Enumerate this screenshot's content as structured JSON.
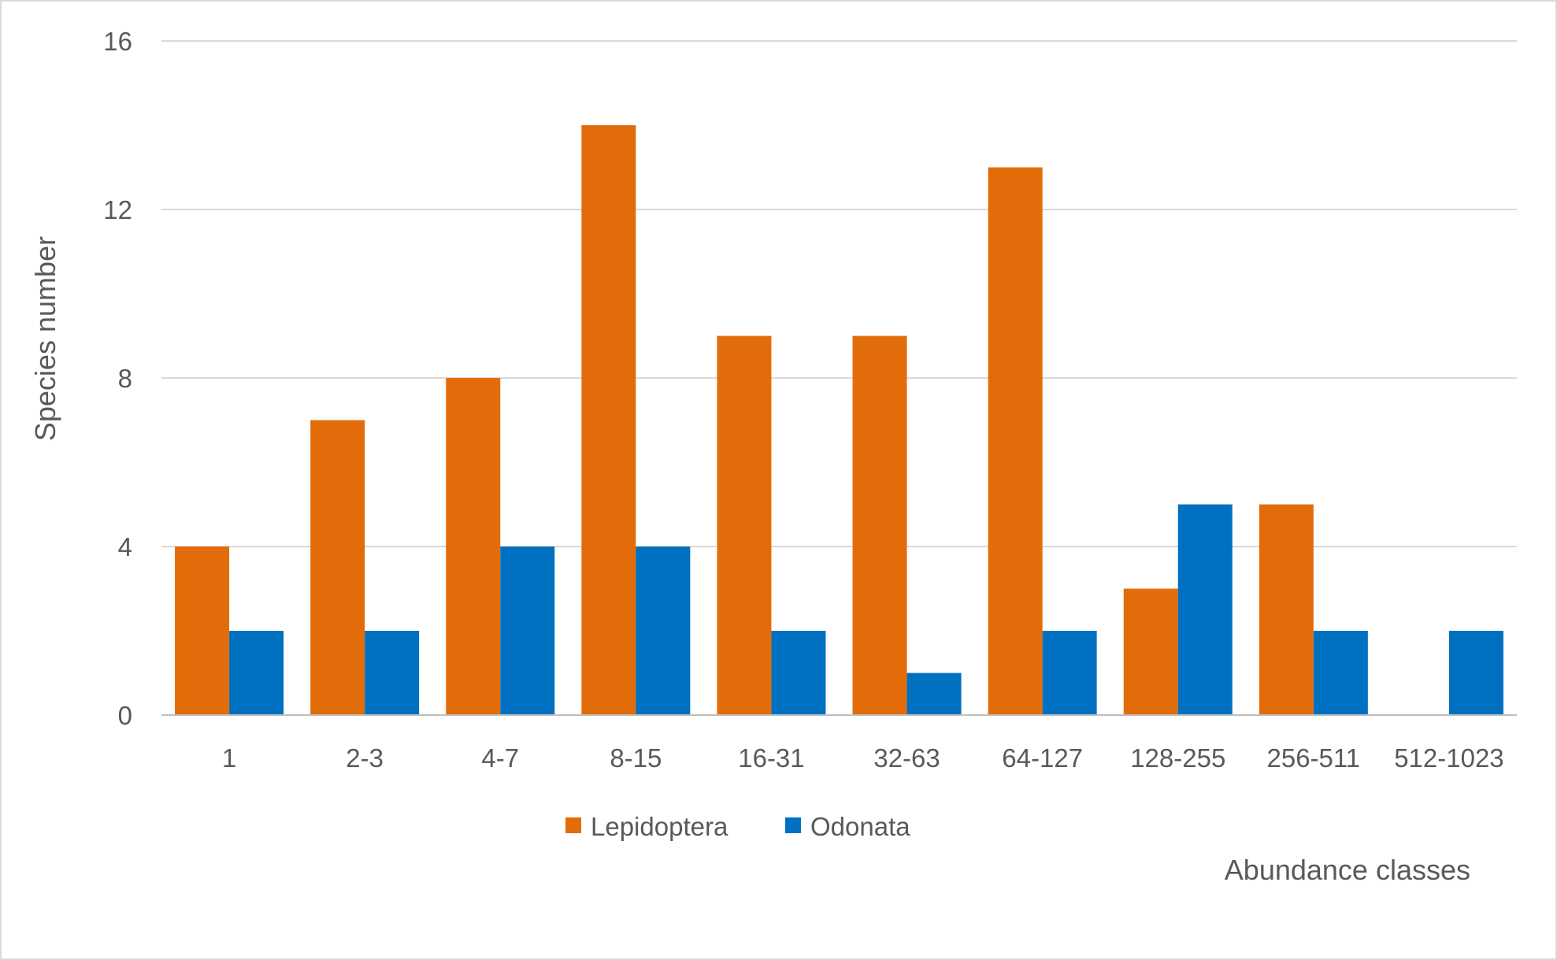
{
  "chart_data": {
    "type": "bar",
    "title": "",
    "xlabel": "Abundance classes",
    "ylabel": "Species number",
    "categories": [
      "1",
      "2-3",
      "4-7",
      "8-15",
      "16-31",
      "32-63",
      "64-127",
      "128-255",
      "256-511",
      "512-1023"
    ],
    "series": [
      {
        "name": "Lepidoptera",
        "color": "#E36C0A",
        "values": [
          4,
          7,
          8,
          14,
          9,
          9,
          13,
          3,
          5,
          0
        ]
      },
      {
        "name": "Odonata",
        "color": "#0070C0",
        "values": [
          2,
          2,
          4,
          4,
          2,
          1,
          2,
          5,
          2,
          2
        ]
      }
    ],
    "ylim": [
      0,
      16
    ],
    "yticks": [
      0,
      4,
      8,
      12,
      16
    ],
    "grid": true,
    "legend_position": "bottom"
  }
}
